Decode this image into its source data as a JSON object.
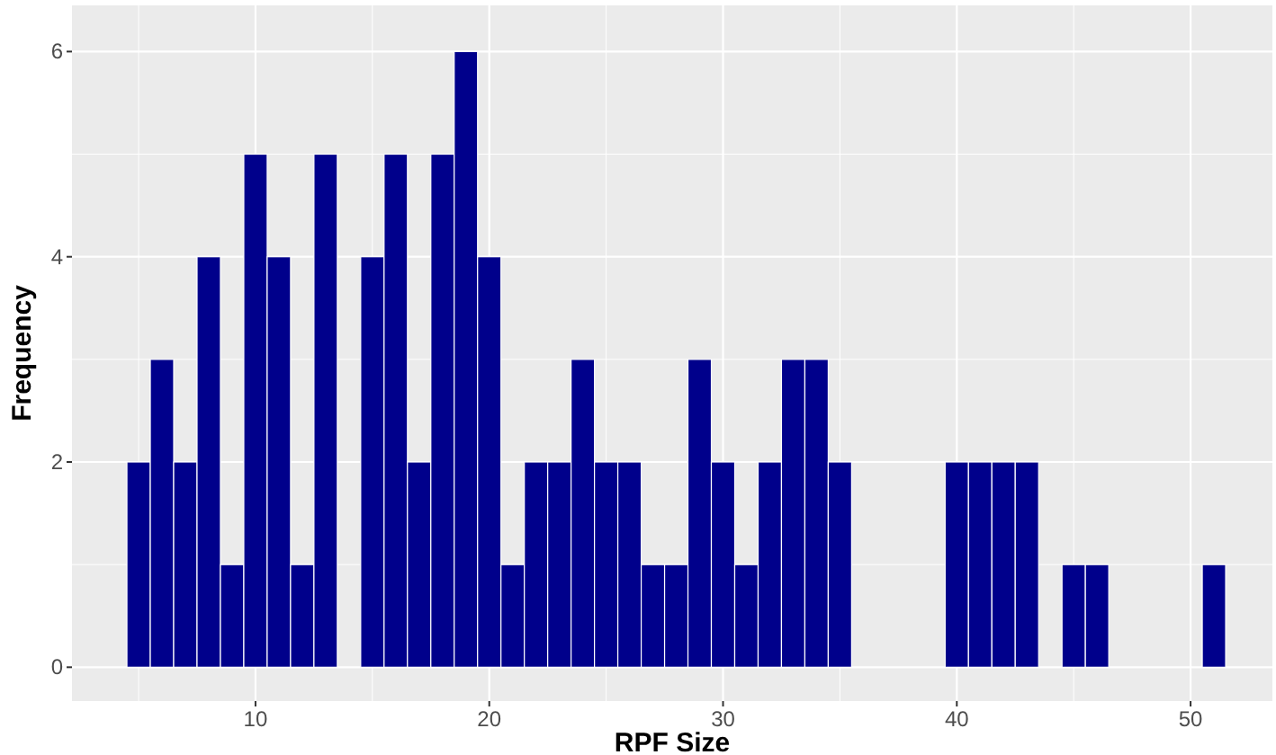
{
  "chart_data": {
    "type": "histogram",
    "xlabel": "RPF Size",
    "ylabel": "Frequency",
    "bins": [
      4.5,
      5.5,
      6.5,
      7.5,
      8.5,
      9.5,
      10.5,
      11.5,
      12.5,
      13.5,
      14.5,
      15.5,
      16.5,
      17.5,
      18.5,
      19.5,
      20.5,
      21.5,
      22.5,
      23.5,
      24.5,
      25.5,
      26.5,
      27.5,
      28.5,
      29.5,
      30.5,
      31.5,
      32.5,
      33.5,
      34.5,
      35.5,
      36.5,
      37.5,
      38.5,
      39.5,
      40.5,
      41.5,
      42.5,
      43.5,
      44.5,
      45.5,
      46.5,
      47.5,
      48.5,
      49.5,
      50.5,
      51.5
    ],
    "values": [
      2,
      3,
      2,
      4,
      1,
      5,
      4,
      1,
      5,
      0,
      4,
      5,
      2,
      5,
      6,
      4,
      1,
      2,
      2,
      3,
      2,
      2,
      1,
      1,
      3,
      2,
      1,
      2,
      3,
      3,
      2,
      0,
      0,
      0,
      0,
      2,
      2,
      2,
      2,
      0,
      1,
      1,
      0,
      0,
      0,
      0,
      1
    ],
    "color": "#00008b",
    "xlim": [
      2.15,
      53.5
    ],
    "xticks": [
      10,
      20,
      30,
      40,
      50
    ],
    "ylim": [
      -0.33,
      6.45
    ],
    "yticks": [
      0,
      2,
      4,
      6
    ],
    "grid": true
  }
}
